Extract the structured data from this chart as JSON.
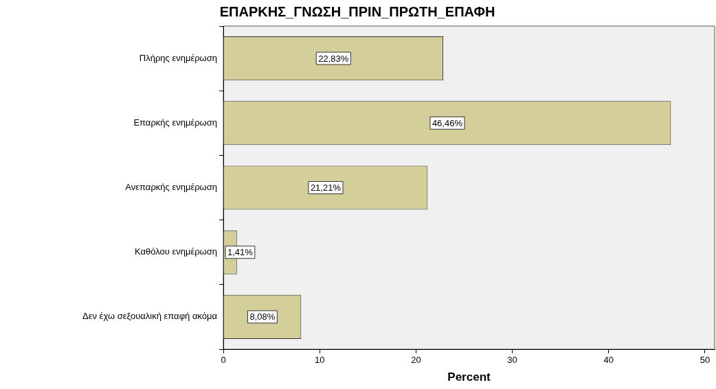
{
  "chart_data": {
    "type": "bar",
    "orientation": "horizontal",
    "title": "ΕΠΑΡΚΗΣ_ΓΝΩΣΗ_ΠΡΙΝ_ΠΡΩΤΗ_ΕΠΑΦΗ",
    "xlabel": "Percent",
    "categories": [
      "Πλήρης ενημέρωση",
      "Επαρκής ενημέρωση",
      "Ανεπαρκής ενημέρωση",
      "Καθόλου ενημέρωση",
      "Δεν έχω σεξουαλική επαφή ακόμα"
    ],
    "values": [
      22.83,
      46.46,
      21.21,
      1.41,
      8.08
    ],
    "value_labels": [
      "22,83%",
      "46,46%",
      "21,21%",
      "1,41%",
      "8,08%"
    ],
    "color": "#d3ce9a",
    "xlim": [
      0,
      51
    ],
    "xticks": [
      0,
      10,
      20,
      30,
      40,
      50
    ],
    "grid": false,
    "legend": false
  }
}
